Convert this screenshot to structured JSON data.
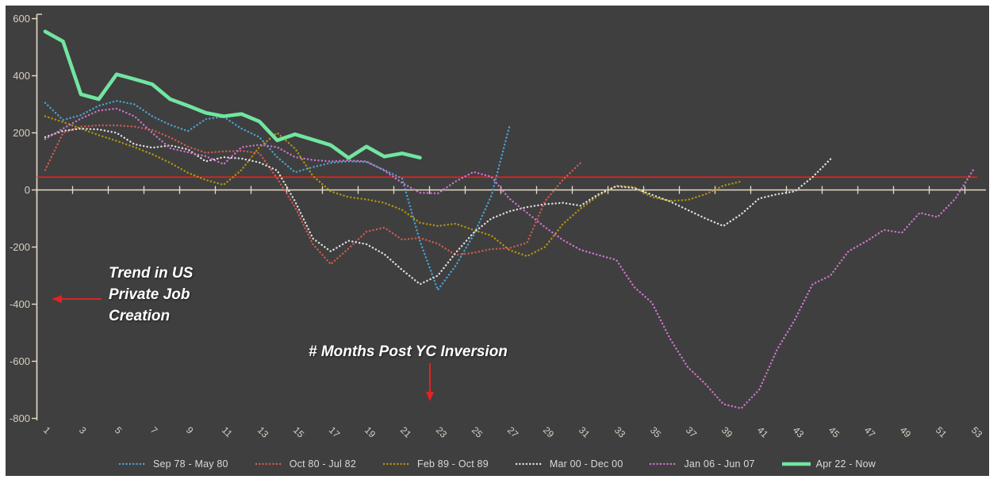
{
  "colors": {
    "panel_background": "#3f3f3f",
    "page_background": "#ffffff",
    "axis_line": "#e7dcc7",
    "tick_label": "#d9cfc0",
    "legend_text": "#d9d9d9",
    "threshold_red": "#e8211d",
    "arrow_red": "#e32222",
    "annotation_text": "#ffffff"
  },
  "annotations": {
    "trend_lines": [
      "Trend in US",
      "Private Job",
      "Creation"
    ],
    "months_label": "# Months Post YC Inversion"
  },
  "chart_data": {
    "type": "line",
    "title": "",
    "xlabel": "# Months Post YC Inversion",
    "ylabel": "Trend in US Private Job Creation",
    "ylim": [
      -800,
      600
    ],
    "y_ticks": [
      600,
      400,
      200,
      0,
      -200,
      -400,
      -600,
      -800
    ],
    "x_range": [
      1,
      53
    ],
    "x_tick_labels": [
      1,
      3,
      5,
      7,
      9,
      11,
      13,
      15,
      17,
      19,
      21,
      23,
      25,
      27,
      29,
      31,
      33,
      35,
      37,
      39,
      41,
      43,
      45,
      47,
      49,
      51,
      53
    ],
    "grid": false,
    "legend_position": "bottom",
    "threshold_line": {
      "value": 45,
      "color": "#e8211d"
    },
    "series": [
      {
        "name": "Sep 78 - May 80",
        "color": "#4ba3d4",
        "style": "dotted",
        "start_month": 1,
        "values": [
          305,
          245,
          262,
          295,
          312,
          300,
          258,
          228,
          206,
          248,
          256,
          215,
          185,
          115,
          62,
          80,
          95,
          100,
          98,
          70,
          40,
          -180,
          -350,
          -265,
          -158,
          -20,
          220
        ]
      },
      {
        "name": "Oct 80 - Jul 82",
        "color": "#d25a50",
        "style": "dotted",
        "start_month": 1,
        "values": [
          70,
          200,
          222,
          226,
          226,
          222,
          210,
          184,
          152,
          130,
          135,
          137,
          129,
          40,
          -60,
          -190,
          -260,
          -205,
          -146,
          -132,
          -174,
          -168,
          -188,
          -228,
          -220,
          -207,
          -204,
          -185,
          -40,
          35,
          95
        ]
      },
      {
        "name": "Feb 89 - Oct 89",
        "color": "#b4950e",
        "style": "dotted",
        "start_month": 1,
        "values": [
          258,
          238,
          215,
          192,
          172,
          150,
          125,
          95,
          60,
          35,
          18,
          70,
          150,
          200,
          145,
          49,
          -5,
          -25,
          -33,
          -45,
          -70,
          -115,
          -126,
          -118,
          -140,
          -160,
          -210,
          -232,
          -200,
          -120,
          -65,
          -20,
          15,
          10,
          -25,
          -38,
          -35,
          -15,
          15,
          30
        ]
      },
      {
        "name": "Mar 00 - Dec 00",
        "color": "#e0e0e0",
        "style": "dotted",
        "start_month": 1,
        "values": [
          185,
          207,
          215,
          212,
          200,
          160,
          148,
          156,
          142,
          100,
          115,
          110,
          96,
          68,
          -40,
          -170,
          -215,
          -178,
          -190,
          -225,
          -280,
          -330,
          -300,
          -220,
          -150,
          -100,
          -75,
          -60,
          -50,
          -45,
          -55,
          -15,
          13,
          7,
          -17,
          -40,
          -70,
          -100,
          -126,
          -85,
          -30,
          -15,
          -5,
          45,
          108
        ]
      },
      {
        "name": "Jan 06 - Jun 07",
        "color": "#ce74ce",
        "style": "dotted",
        "start_month": 1,
        "values": [
          178,
          215,
          250,
          278,
          285,
          258,
          200,
          146,
          132,
          118,
          90,
          150,
          158,
          150,
          115,
          105,
          100,
          104,
          100,
          68,
          25,
          -10,
          -12,
          30,
          63,
          46,
          -30,
          -80,
          -130,
          -175,
          -210,
          -228,
          -245,
          -340,
          -395,
          -520,
          -620,
          -680,
          -750,
          -765,
          -700,
          -560,
          -455,
          -330,
          -300,
          -215,
          -180,
          -140,
          -150,
          -80,
          -95,
          -30,
          70
        ]
      },
      {
        "name": "Apr 22 - Now",
        "color": "#71e5a1",
        "style": "solid",
        "start_month": 1,
        "values": [
          555,
          520,
          335,
          318,
          405,
          388,
          370,
          318,
          295,
          270,
          258,
          266,
          240,
          174,
          195,
          176,
          157,
          112,
          152,
          117,
          128,
          113
        ]
      }
    ]
  }
}
